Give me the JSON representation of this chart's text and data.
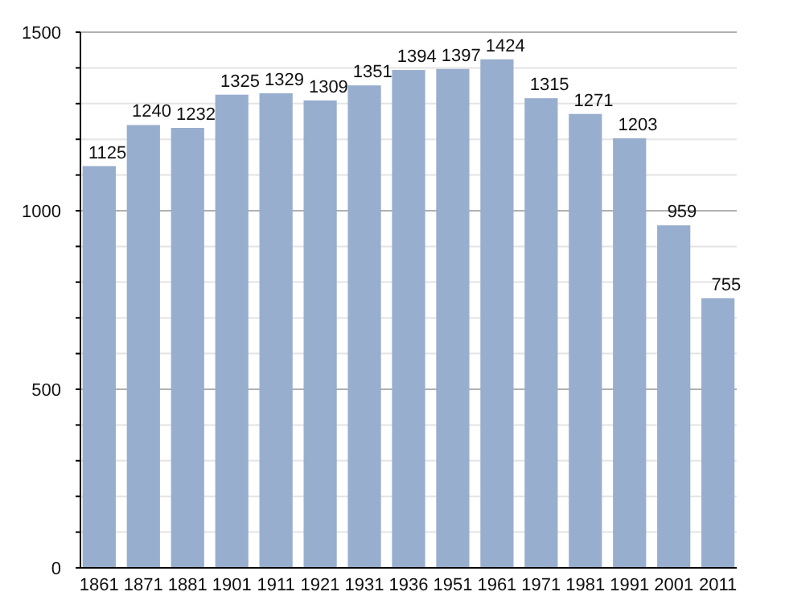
{
  "chart_data": {
    "type": "bar",
    "categories": [
      "1861",
      "1871",
      "1881",
      "1901",
      "1911",
      "1921",
      "1931",
      "1936",
      "1951",
      "1961",
      "1971",
      "1981",
      "1991",
      "2001",
      "2011"
    ],
    "values": [
      1125,
      1240,
      1232,
      1325,
      1329,
      1309,
      1351,
      1394,
      1397,
      1424,
      1315,
      1271,
      1203,
      959,
      755
    ],
    "color": "#98aece",
    "ylim": [
      0,
      1500
    ],
    "yticks": [
      0,
      {
        "value": 100,
        "label": null
      },
      {
        "value": 200,
        "label": null
      },
      {
        "value": 300,
        "label": null
      },
      {
        "value": 400,
        "label": null
      },
      500,
      {
        "value": 600,
        "label": null
      },
      {
        "value": 700,
        "label": null
      },
      {
        "value": 800,
        "label": null
      },
      {
        "value": 900,
        "label": null
      },
      1000,
      {
        "value": 1100,
        "label": null
      },
      {
        "value": 1200,
        "label": null
      },
      {
        "value": 1300,
        "label": null
      },
      {
        "value": 1400,
        "label": null
      },
      1500
    ],
    "grid": "y",
    "data_labels": true
  }
}
